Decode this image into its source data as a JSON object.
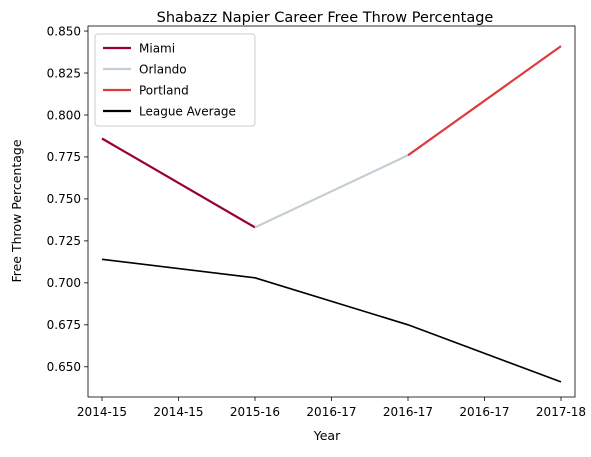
{
  "chart_data": {
    "type": "line",
    "title": "Shabazz Napier Career Free Throw Percentage",
    "xlabel": "Year",
    "ylabel": "Free Throw Percentage",
    "x_tick_labels": [
      "2014-15",
      "2014-15",
      "2015-16",
      "2016-17",
      "2016-17",
      "2016-17",
      "2017-18"
    ],
    "x_seasons": [
      "2014-15",
      "2015-16",
      "2016-17",
      "2017-18"
    ],
    "y_ticks": [
      "0.650",
      "0.675",
      "0.700",
      "0.725",
      "0.750",
      "0.775",
      "0.800",
      "0.825",
      "0.850"
    ],
    "ylim": [
      0.632,
      0.853
    ],
    "grid": false,
    "legend_position": "top-left",
    "series": [
      {
        "name": "Miami",
        "color": "#98002E",
        "points": [
          {
            "x": "2014-15",
            "y": 0.786
          },
          {
            "x": "2015-16",
            "y": 0.733
          }
        ]
      },
      {
        "name": "Orlando",
        "color": "#C4CED4",
        "points": [
          {
            "x": "2015-16",
            "y": 0.733
          },
          {
            "x": "2016-17",
            "y": 0.776
          }
        ]
      },
      {
        "name": "Portland",
        "color": "#E03A3E",
        "points": [
          {
            "x": "2016-17",
            "y": 0.776
          },
          {
            "x": "2017-18",
            "y": 0.841
          }
        ]
      },
      {
        "name": "League Average",
        "color": "#000000",
        "points": [
          {
            "x": "2014-15",
            "y": 0.714
          },
          {
            "x": "2015-16",
            "y": 0.703
          },
          {
            "x": "2016-17",
            "y": 0.675
          },
          {
            "x": "2017-18",
            "y": 0.641
          }
        ]
      }
    ]
  }
}
